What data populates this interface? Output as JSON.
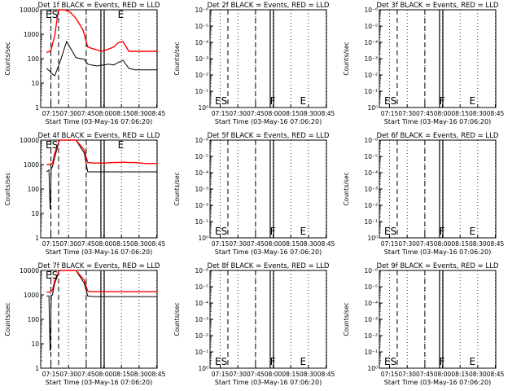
{
  "figure": {
    "y_label": "Counts/sec",
    "x_label": "Start Time (03-May-16 07:06:20)",
    "x_ticks": [
      "07:15",
      "07:30",
      "07:45",
      "08:00",
      "08:15",
      "08:30",
      "08:45"
    ],
    "colors": {
      "events": "#000000",
      "lld": "#ff0000",
      "background": "#ffffff"
    }
  },
  "chart_data": [
    {
      "type": "line",
      "detector": "1f",
      "title": "Det 1f BLACK = Events, RED = LLD",
      "x_unit": "minutes after 07:06:20",
      "y_scale": "log",
      "ylim": [
        1,
        10000
      ],
      "y_ticks": [
        "1",
        "10",
        "100",
        "1000",
        "10000"
      ],
      "markers": [
        {
          "label": "ES",
          "x": 9.7
        }
      ],
      "dashed_lines": [
        8.7,
        15.2,
        38.7
      ],
      "solid_lines": [
        51.2,
        54.0
      ],
      "marker_labels": [
        {
          "text": "E",
          "x": 65.5
        }
      ],
      "series": [
        {
          "name": "Events",
          "color": "#000000",
          "x": [
            5,
            8,
            9,
            12,
            17,
            22,
            30,
            37,
            40,
            43,
            48,
            53,
            58,
            62,
            66,
            70,
            75,
            80,
            85,
            90,
            95,
            99
          ],
          "y": [
            40,
            30,
            25,
            20,
            90,
            500,
            110,
            95,
            60,
            55,
            50,
            55,
            60,
            55,
            70,
            85,
            40,
            35,
            35,
            35,
            35,
            35
          ]
        },
        {
          "name": "LLD",
          "color": "#ff0000",
          "x": [
            5,
            8,
            9,
            12,
            15,
            20,
            25,
            30,
            36,
            40,
            45,
            52,
            58,
            62,
            66,
            70,
            75,
            80,
            85,
            90,
            95,
            99
          ],
          "y": [
            180,
            200,
            250,
            900,
            10000,
            10000,
            8000,
            4500,
            1500,
            300,
            250,
            200,
            250,
            300,
            450,
            500,
            200,
            200,
            200,
            200,
            200,
            200
          ]
        }
      ]
    },
    {
      "type": "line",
      "detector": "2f",
      "title": "Det 2f BLACK = Events, RED = LLD",
      "x_unit": "minutes after 07:06:20",
      "y_scale": "log",
      "ylim": [
        1e-06,
        1
      ],
      "y_ticks": [
        "10⁰",
        "10⁻¹",
        "10⁻²",
        "10⁻³",
        "10⁻⁴",
        "10⁻⁵",
        "10⁻⁶"
      ],
      "markers": [
        {
          "label": "ES",
          "x": 9.7
        }
      ],
      "dashed_lines": [
        15.2,
        38.7
      ],
      "solid_lines": [
        51.2,
        54.0
      ],
      "marker_labels": [
        {
          "text": "F",
          "x": 51.0
        },
        {
          "text": "E",
          "x": 76.5
        }
      ],
      "series": []
    },
    {
      "type": "line",
      "detector": "3f",
      "title": "Det 3f BLACK = Events, RED = LLD",
      "x_unit": "minutes after 07:06:20",
      "y_scale": "log",
      "ylim": [
        1e-06,
        1
      ],
      "y_ticks": [
        "10⁰",
        "10⁻¹",
        "10⁻²",
        "10⁻³",
        "10⁻⁴",
        "10⁻⁵",
        "10⁻⁶"
      ],
      "markers": [
        {
          "label": "ES",
          "x": 9.7
        }
      ],
      "dashed_lines": [
        15.2,
        38.7
      ],
      "solid_lines": [
        51.2,
        54.0
      ],
      "marker_labels": [
        {
          "text": "F",
          "x": 51.0
        },
        {
          "text": "E",
          "x": 76.5
        }
      ],
      "series": []
    },
    {
      "type": "line",
      "detector": "4f",
      "title": "Det 4f BLACK = Events, RED = LLD",
      "x_unit": "minutes after 07:06:20",
      "y_scale": "log",
      "ylim": [
        1,
        10000
      ],
      "y_ticks": [
        "1",
        "10",
        "100",
        "1000",
        "10000"
      ],
      "markers": [
        {
          "label": "ES",
          "x": 9.7
        }
      ],
      "dashed_lines": [
        8.7,
        15.2,
        38.7
      ],
      "solid_lines": [
        51.2,
        54.0
      ],
      "marker_labels": [
        {
          "text": "E",
          "x": 65.5
        }
      ],
      "series": [
        {
          "name": "Events",
          "color": "#000000",
          "x": [
            5,
            7,
            8,
            9,
            10,
            12,
            16,
            22,
            30,
            37,
            40,
            45,
            50,
            55,
            60,
            65,
            70,
            75,
            80,
            85,
            90,
            95,
            99
          ],
          "y": [
            500,
            600,
            15,
            700,
            800,
            2000,
            10000,
            10000,
            10000,
            3000,
            500,
            500,
            500,
            500,
            500,
            500,
            500,
            500,
            500,
            500,
            500,
            500,
            500
          ]
        },
        {
          "name": "LLD",
          "color": "#ff0000",
          "x": [
            5,
            8,
            10,
            12,
            16,
            22,
            30,
            37,
            40,
            45,
            50,
            55,
            60,
            65,
            70,
            75,
            80,
            85,
            90,
            95,
            99
          ],
          "y": [
            1000,
            1000,
            1100,
            3000,
            10000,
            10000,
            10000,
            4000,
            1200,
            1150,
            1150,
            1150,
            1200,
            1200,
            1250,
            1200,
            1200,
            1150,
            1100,
            1100,
            1100
          ]
        }
      ]
    },
    {
      "type": "line",
      "detector": "5f",
      "title": "Det 5f BLACK = Events, RED = LLD",
      "x_unit": "minutes after 07:06:20",
      "y_scale": "log",
      "ylim": [
        1e-06,
        1
      ],
      "y_ticks": [
        "10⁰",
        "10⁻¹",
        "10⁻²",
        "10⁻³",
        "10⁻⁴",
        "10⁻⁵",
        "10⁻⁶"
      ],
      "markers": [
        {
          "label": "ES",
          "x": 9.7
        }
      ],
      "dashed_lines": [
        15.2,
        38.7
      ],
      "solid_lines": [
        51.2,
        54.0
      ],
      "marker_labels": [
        {
          "text": "F",
          "x": 51.0
        },
        {
          "text": "E",
          "x": 76.5
        }
      ],
      "series": []
    },
    {
      "type": "line",
      "detector": "6f",
      "title": "Det 6f BLACK = Events, RED = LLD",
      "x_unit": "minutes after 07:06:20",
      "y_scale": "log",
      "ylim": [
        1e-06,
        1
      ],
      "y_ticks": [
        "10⁰",
        "10⁻¹",
        "10⁻²",
        "10⁻³",
        "10⁻⁴",
        "10⁻⁵",
        "10⁻⁶"
      ],
      "markers": [
        {
          "label": "ES",
          "x": 9.7
        }
      ],
      "dashed_lines": [
        15.2,
        38.7
      ],
      "solid_lines": [
        51.2,
        54.0
      ],
      "marker_labels": [
        {
          "text": "F",
          "x": 51.0
        },
        {
          "text": "E",
          "x": 76.5
        }
      ],
      "series": []
    },
    {
      "type": "line",
      "detector": "7f",
      "title": "Det 7f BLACK = Events, RED = LLD",
      "x_unit": "minutes after 07:06:20",
      "y_scale": "log",
      "ylim": [
        1,
        10000
      ],
      "y_ticks": [
        "1",
        "10",
        "100",
        "1000",
        "10000"
      ],
      "markers": [
        {
          "label": "ES",
          "x": 9.7
        }
      ],
      "dashed_lines": [
        8.7,
        15.2,
        38.7
      ],
      "solid_lines": [
        51.2,
        54.0
      ],
      "marker_labels": [],
      "series": [
        {
          "name": "Events",
          "color": "#000000",
          "x": [
            5,
            7,
            8,
            9,
            10,
            12,
            16,
            22,
            30,
            37,
            40,
            45,
            50,
            55,
            60,
            65,
            70,
            75,
            80,
            85,
            90,
            95,
            99
          ],
          "y": [
            900,
            900,
            5,
            900,
            1000,
            3000,
            10000,
            10000,
            10000,
            3000,
            900,
            850,
            850,
            850,
            850,
            850,
            850,
            850,
            850,
            850,
            850,
            850,
            850
          ]
        },
        {
          "name": "LLD",
          "color": "#ff0000",
          "x": [
            5,
            8,
            10,
            12,
            16,
            22,
            30,
            37,
            40,
            45,
            50,
            55,
            60,
            65,
            70,
            75,
            80,
            85,
            90,
            95,
            99
          ],
          "y": [
            1300,
            1300,
            1500,
            4000,
            10000,
            10000,
            10000,
            4000,
            1400,
            1350,
            1350,
            1350,
            1350,
            1350,
            1350,
            1350,
            1350,
            1350,
            1350,
            1350,
            1350
          ]
        }
      ]
    },
    {
      "type": "line",
      "detector": "8f",
      "title": "Det 8f BLACK = Events, RED = LLD",
      "x_unit": "minutes after 07:06:20",
      "y_scale": "log",
      "ylim": [
        1e-06,
        1
      ],
      "y_ticks": [
        "10⁰",
        "10⁻¹",
        "10⁻²",
        "10⁻³",
        "10⁻⁴",
        "10⁻⁵",
        "10⁻⁶"
      ],
      "markers": [
        {
          "label": "ES",
          "x": 9.7
        }
      ],
      "dashed_lines": [
        15.2,
        38.7
      ],
      "solid_lines": [
        51.2,
        54.0
      ],
      "marker_labels": [
        {
          "text": "F",
          "x": 51.0
        },
        {
          "text": "E",
          "x": 76.5
        }
      ],
      "series": []
    },
    {
      "type": "line",
      "detector": "9f",
      "title": "Det 9f BLACK = Events, RED = LLD",
      "x_unit": "minutes after 07:06:20",
      "y_scale": "log",
      "ylim": [
        1e-06,
        1
      ],
      "y_ticks": [
        "10⁰",
        "10⁻¹",
        "10⁻²",
        "10⁻³",
        "10⁻⁴",
        "10⁻⁵",
        "10⁻⁶"
      ],
      "markers": [
        {
          "label": "ES",
          "x": 9.7
        }
      ],
      "dashed_lines": [
        15.2,
        38.7
      ],
      "solid_lines": [
        51.2,
        54.0
      ],
      "marker_labels": [
        {
          "text": "F",
          "x": 51.0
        },
        {
          "text": "E",
          "x": 76.5
        }
      ],
      "series": []
    }
  ]
}
